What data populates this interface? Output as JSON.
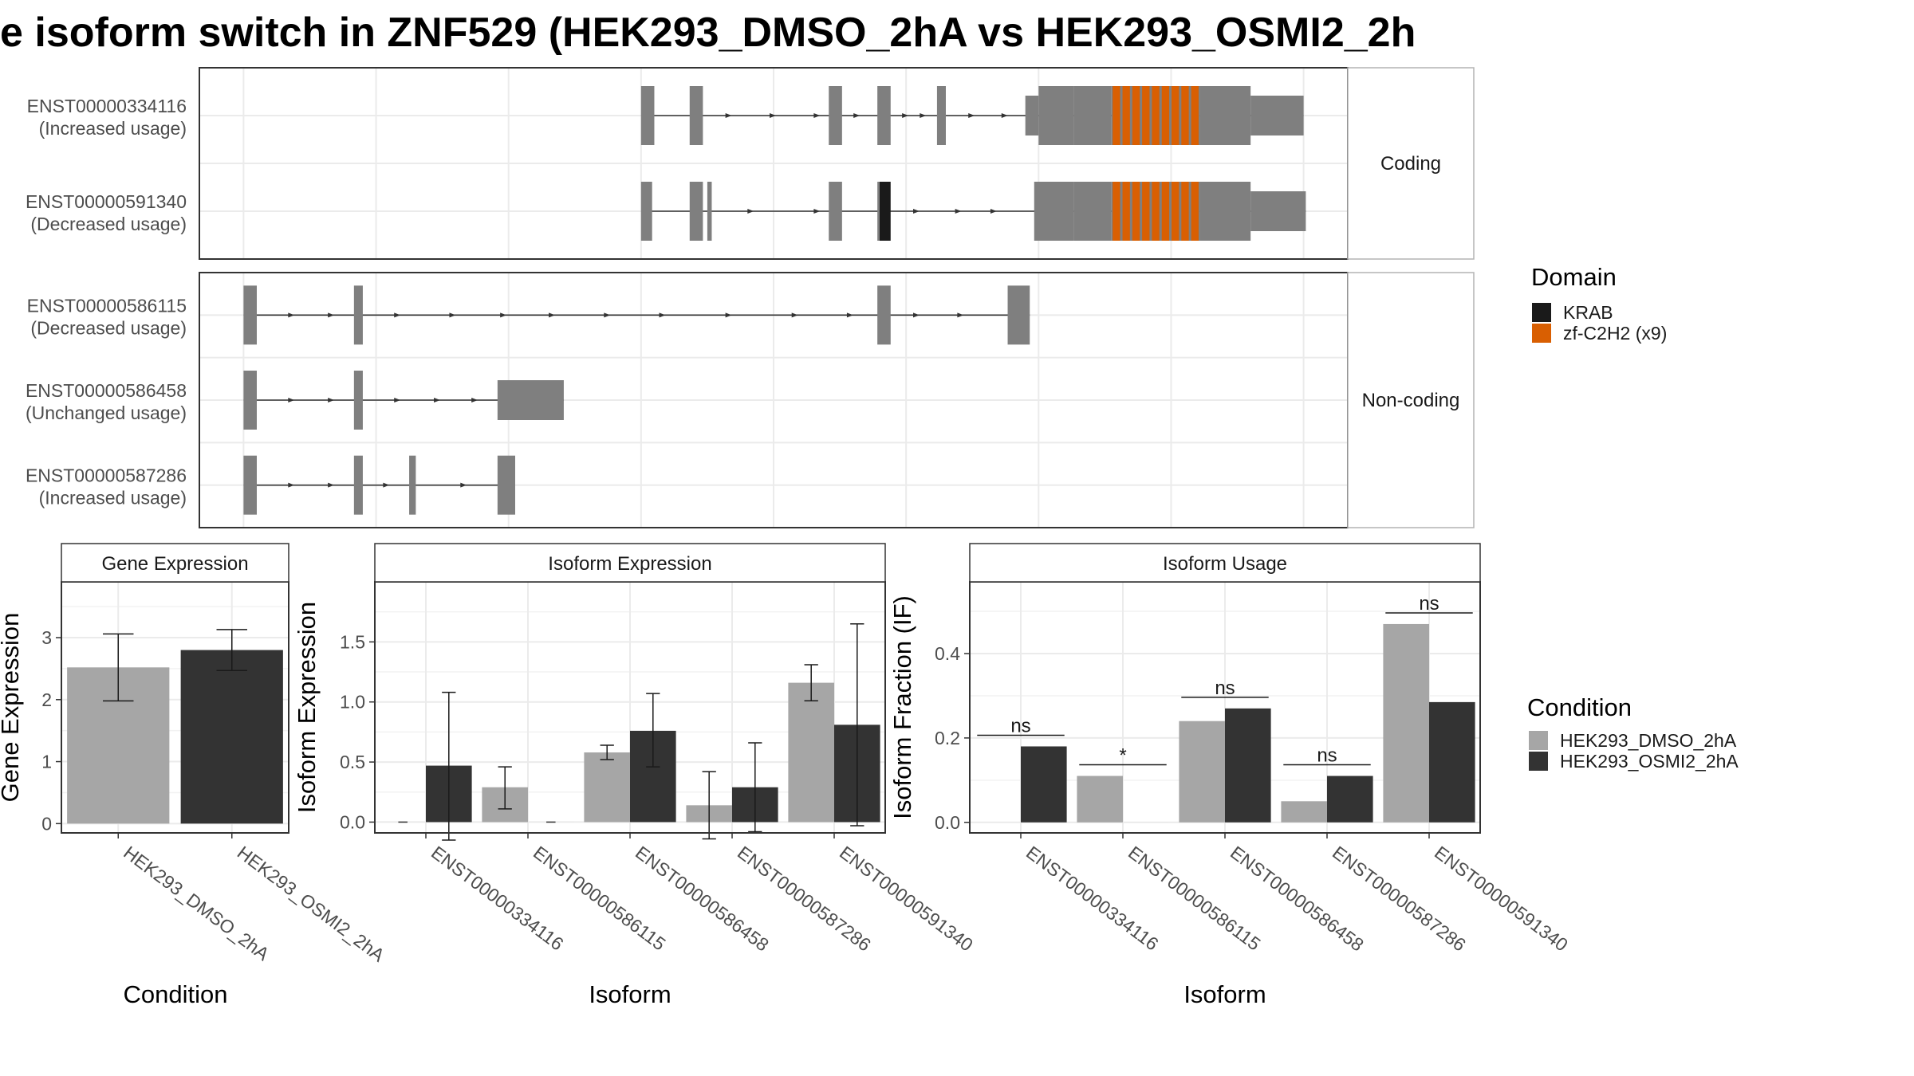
{
  "title": "e isoform switch in ZNF529 (HEK293_DMSO_2hA vs HEK293_OSMI2_2h",
  "colors": {
    "exon": "#7f7f7f",
    "krab": "#1a1a1a",
    "zf_c2h2": "#d95f02",
    "dmso": "#a6a6a6",
    "osmi2": "#333333",
    "grid": "#ebebeb",
    "panel_border": "#333333",
    "strip_border": "#b3b3b3"
  },
  "structure": {
    "facets": [
      {
        "label": "Coding",
        "transcripts": [
          {
            "id": "ENST00000334116",
            "usage": "(Increased usage)",
            "exons": [
              [
                7200,
                7260,
                "t"
              ],
              [
                7420,
                7480,
                "t"
              ],
              [
                8050,
                8110,
                "t"
              ],
              [
                8270,
                8330,
                "t"
              ],
              [
                8540,
                8580,
                "t"
              ],
              [
                8940,
                9000,
                "m"
              ],
              [
                9000,
                9160,
                "t"
              ],
              [
                9160,
                9330,
                "c"
              ],
              [
                9330,
                9730,
                "z"
              ],
              [
                9730,
                9960,
                "c"
              ],
              [
                9960,
                10200,
                "m"
              ]
            ],
            "arrows": [
              7600,
              7800,
              8000,
              8180,
              8400,
              8480,
              8700,
              8850
            ]
          },
          {
            "id": "ENST00000591340",
            "usage": "(Decreased usage)",
            "exons": [
              [
                7200,
                7250,
                "t"
              ],
              [
                7420,
                7480,
                "t"
              ],
              [
                7500,
                7520,
                "c"
              ],
              [
                8050,
                8110,
                "t"
              ],
              [
                8270,
                8280,
                "t"
              ],
              [
                8280,
                8330,
                "k"
              ],
              [
                8980,
                9160,
                "t"
              ],
              [
                9160,
                9330,
                "c"
              ],
              [
                9330,
                9730,
                "z"
              ],
              [
                9730,
                9960,
                "c"
              ],
              [
                9960,
                10210,
                "m"
              ]
            ],
            "arrows": [
              7700,
              8000,
              8450,
              8640,
              8800
            ]
          }
        ]
      },
      {
        "label": "Non-coding",
        "transcripts": [
          {
            "id": "ENST00000586115",
            "usage": "(Decreased usage)",
            "exons": [
              [
                5400,
                5460,
                "t"
              ],
              [
                5900,
                5940,
                "t"
              ],
              [
                8270,
                8330,
                "t"
              ],
              [
                8860,
                8960,
                "t"
              ]
            ],
            "arrows": [
              5620,
              5800,
              6100,
              6350,
              6580,
              6800,
              7050,
              7300,
              7600,
              7900,
              8150,
              8450,
              8650
            ]
          },
          {
            "id": "ENST00000586458",
            "usage": "(Unchanged usage)",
            "exons": [
              [
                5400,
                5460,
                "t"
              ],
              [
                5900,
                5940,
                "t"
              ],
              [
                6550,
                6850,
                "m"
              ]
            ],
            "arrows": [
              5620,
              5800,
              6100,
              6280,
              6450
            ]
          },
          {
            "id": "ENST00000587286",
            "usage": "(Increased usage)",
            "exons": [
              [
                5400,
                5460,
                "t"
              ],
              [
                5900,
                5940,
                "t"
              ],
              [
                6150,
                6180,
                "t"
              ],
              [
                6550,
                6630,
                "t"
              ]
            ],
            "arrows": [
              5620,
              5800,
              6050,
              6400
            ]
          }
        ]
      }
    ],
    "x_range": [
      5200,
      10400
    ],
    "x_gridlines": [
      5400,
      6000,
      6600,
      7200,
      7800,
      8400,
      9000,
      9600,
      10200
    ]
  },
  "legend_domain": {
    "title": "Domain",
    "items": [
      {
        "label": "KRAB",
        "color": "#1a1a1a"
      },
      {
        "label": "zf-C2H2 (x9)",
        "color": "#d95f02"
      }
    ]
  },
  "legend_condition": {
    "title": "Condition",
    "items": [
      {
        "label": "HEK293_DMSO_2hA",
        "color": "#a6a6a6"
      },
      {
        "label": "HEK293_OSMI2_2hA",
        "color": "#333333"
      }
    ]
  },
  "chart_data": [
    {
      "type": "bar",
      "title": "Gene Expression",
      "xlabel": "Condition",
      "ylabel": "Gene Expression",
      "categories": [
        "HEK293_DMSO_2hA",
        "HEK293_OSMI2_2hA"
      ],
      "values": [
        2.52,
        2.8
      ],
      "error_low": [
        1.98,
        2.47
      ],
      "error_high": [
        3.06,
        3.13
      ],
      "ylim": [
        -0.15,
        3.9
      ],
      "yticks": [
        0,
        1,
        2,
        3
      ]
    },
    {
      "type": "bar",
      "title": "Isoform Expression",
      "xlabel": "Isoform",
      "ylabel": "Isoform Expression",
      "categories": [
        "ENST00000334116",
        "ENST00000586115",
        "ENST00000586458",
        "ENST00000587286",
        "ENST00000591340"
      ],
      "series": [
        {
          "name": "HEK293_DMSO_2hA",
          "values": [
            0,
            0.29,
            0.58,
            0.14,
            1.16
          ],
          "error_low": [
            0,
            0.11,
            0.52,
            -0.14,
            1.01
          ],
          "error_high": [
            0,
            0.46,
            0.64,
            0.42,
            1.31
          ]
        },
        {
          "name": "HEK293_OSMI2_2hA",
          "values": [
            0.47,
            0,
            0.76,
            0.29,
            0.81
          ],
          "error_low": [
            -0.15,
            0,
            0.46,
            -0.08,
            -0.03
          ],
          "error_high": [
            1.08,
            0,
            1.07,
            0.66,
            1.65
          ]
        }
      ],
      "ylim": [
        -0.09,
        2.0
      ],
      "yticks": [
        0,
        0.5,
        1,
        1.5
      ],
      "ytick_labels": [
        "0.0",
        "0.5",
        "1.0",
        "1.5"
      ]
    },
    {
      "type": "bar",
      "title": "Isoform Usage",
      "xlabel": "Isoform",
      "ylabel": "Isoform Fraction (IF)",
      "categories": [
        "ENST00000334116",
        "ENST00000586115",
        "ENST00000586458",
        "ENST00000587286",
        "ENST00000591340"
      ],
      "series": [
        {
          "name": "HEK293_DMSO_2hA",
          "values": [
            0,
            0.11,
            0.24,
            0.05,
            0.47
          ]
        },
        {
          "name": "HEK293_OSMI2_2hA",
          "values": [
            0.18,
            0,
            0.27,
            0.11,
            0.285
          ]
        }
      ],
      "significance": [
        "ns",
        "*",
        "ns",
        "ns",
        "ns"
      ],
      "ylim": [
        -0.025,
        0.57
      ],
      "yticks": [
        0,
        0.2,
        0.4
      ],
      "ytick_labels": [
        "0.0",
        "0.2",
        "0.4"
      ]
    }
  ]
}
